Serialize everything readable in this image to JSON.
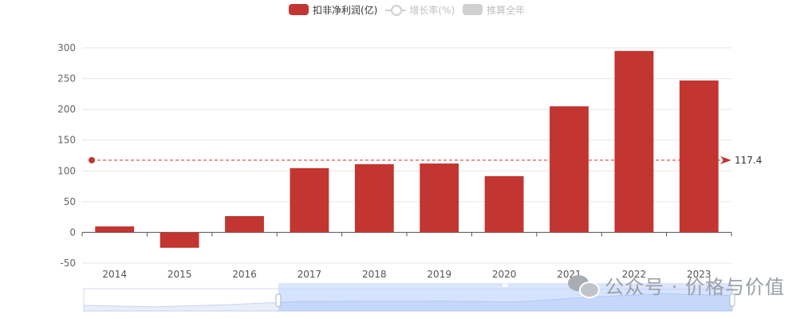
{
  "legend": [
    {
      "label": "扣非净利润(亿)",
      "color": "#c23531",
      "kind": "bar",
      "active": true
    },
    {
      "label": "增长率(%)",
      "color": "#d0d0d0",
      "kind": "line",
      "active": false
    },
    {
      "label": "推算全年",
      "color": "#d0d0d0",
      "kind": "bar",
      "active": false
    }
  ],
  "chart_data": {
    "type": "bar",
    "categories": [
      "2014",
      "2015",
      "2016",
      "2017",
      "2018",
      "2019",
      "2020",
      "2021",
      "2022",
      "2023"
    ],
    "series": [
      {
        "name": "扣非净利润(亿)",
        "color": "#c23531",
        "values": [
          9.8,
          -25.0,
          26.5,
          104.5,
          111.0,
          112.0,
          91.5,
          205.0,
          295.0,
          247.0
        ]
      }
    ],
    "ylim": [
      -50,
      300
    ],
    "yticks": [
      -50,
      0,
      50,
      100,
      150,
      200,
      250,
      300
    ],
    "grid": true,
    "legend_position": "top-center",
    "average_line": {
      "value": 117.4,
      "label": "117.4",
      "color": "#c23531"
    },
    "data_zoom": {
      "start_percent": 30,
      "end_percent": 100
    }
  },
  "watermark": {
    "text": "公众号 · 价格与价值",
    "icon": "wechat-icon"
  }
}
